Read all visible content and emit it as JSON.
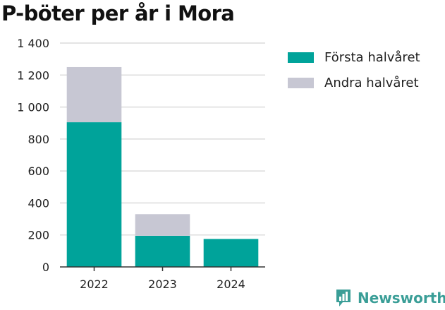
{
  "page": {
    "title": "P-böter per år i Mora",
    "brand": "Newsworthy"
  },
  "colors": {
    "first_half": "#00a39a",
    "second_half": "#c7c7d3",
    "grid": "#dcdcdc",
    "axis": "#333333",
    "brand": "#3a9e97"
  },
  "legend": [
    {
      "label": "Första halvåret",
      "color": "#00a39a"
    },
    {
      "label": "Andra halvåret",
      "color": "#c7c7d3"
    }
  ],
  "chart_data": {
    "type": "bar",
    "stacked": true,
    "title": "P-böter per år i Mora",
    "xlabel": "",
    "ylabel": "",
    "categories": [
      "2022",
      "2023",
      "2024"
    ],
    "series": [
      {
        "name": "Första halvåret",
        "values": [
          905,
          195,
          175
        ]
      },
      {
        "name": "Andra halvåret",
        "values": [
          345,
          135,
          0
        ]
      }
    ],
    "ylim": [
      0,
      1400
    ],
    "yticks": [
      0,
      200,
      400,
      600,
      800,
      1000,
      1200,
      1400
    ],
    "ytick_labels": [
      "0",
      "200",
      "400",
      "600",
      "800",
      "1 000",
      "1 200",
      "1 400"
    ],
    "grid": true,
    "legend_position": "right"
  }
}
